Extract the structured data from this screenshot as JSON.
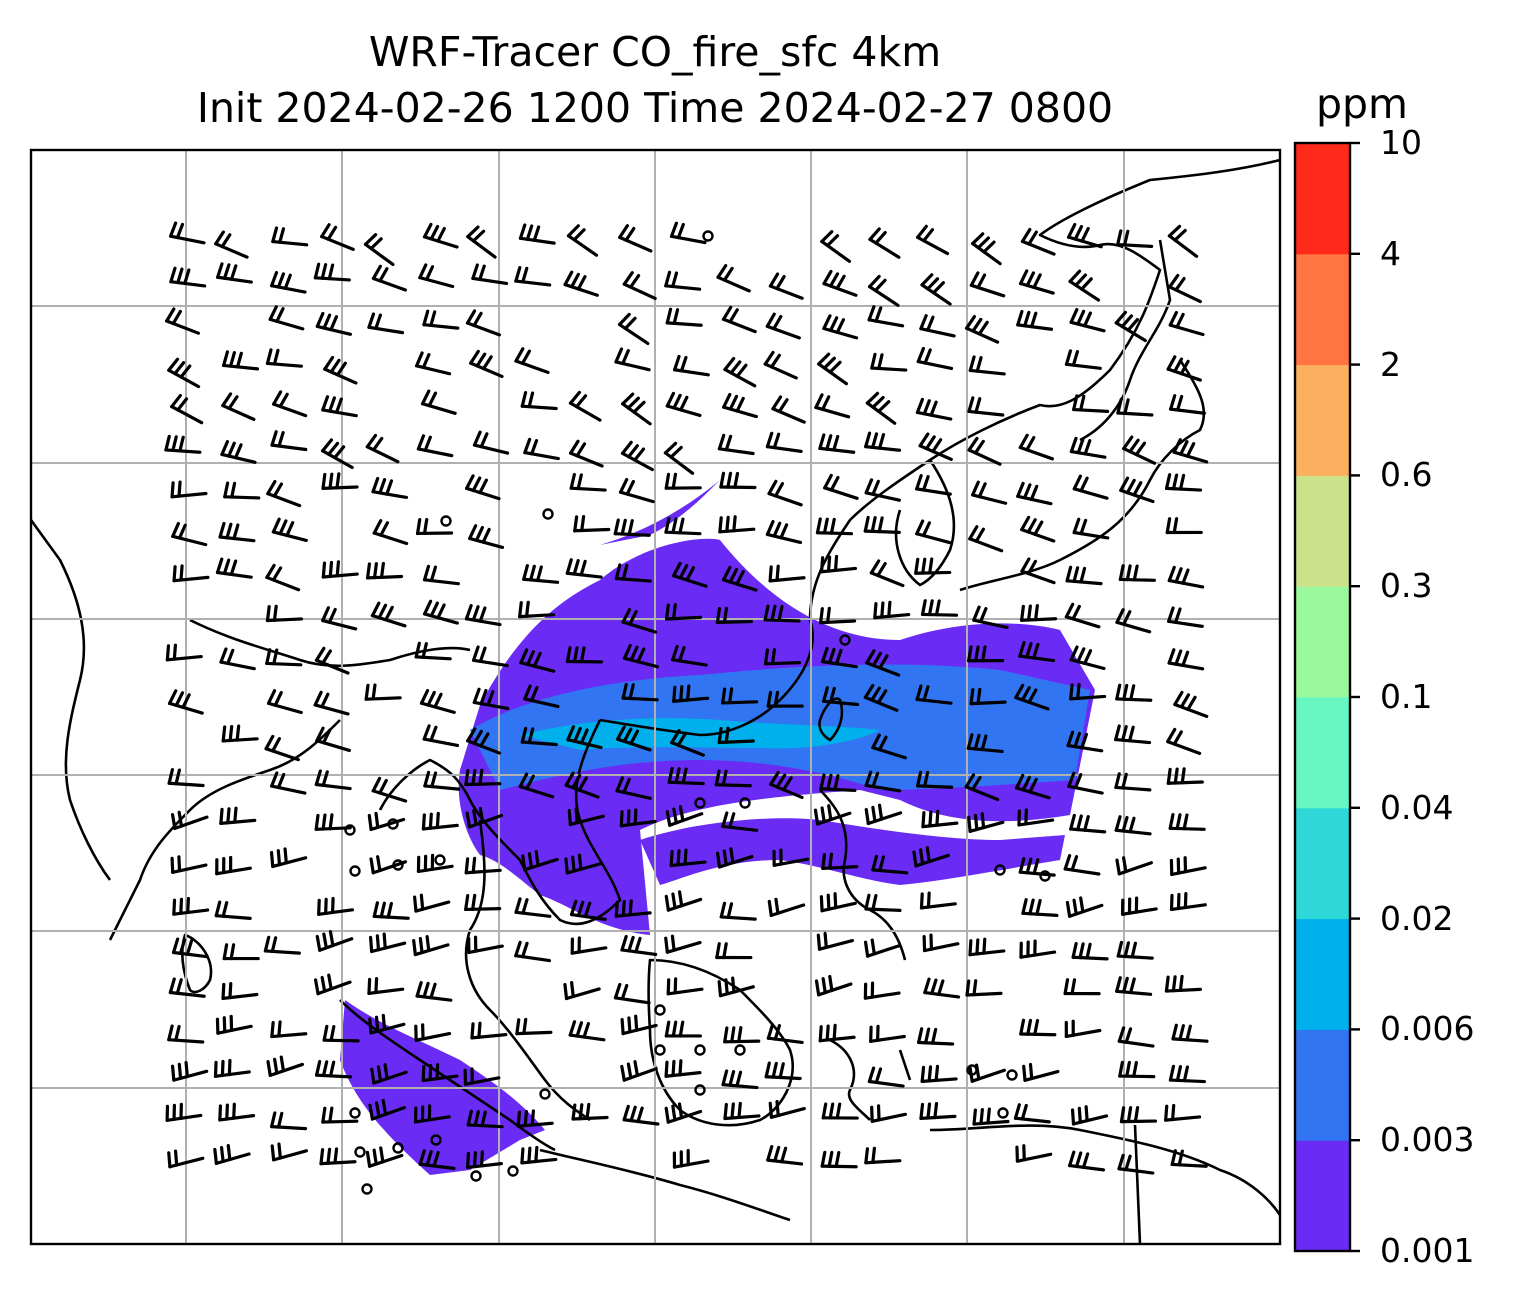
{
  "title": {
    "line1": "WRF-Tracer CO_fire_sfc 4km",
    "line2": "Init 2024-02-26 1200 Time 2024-02-27 0800"
  },
  "colorbar": {
    "unit": "ppm",
    "levels": [
      "0.001",
      "0.003",
      "0.006",
      "0.02",
      "0.04",
      "0.1",
      "0.3",
      "0.6",
      "2",
      "4",
      "10"
    ],
    "colors": [
      "#6a2cf5",
      "#3275f2",
      "#00b0ec",
      "#2ed8d8",
      "#66f7c2",
      "#9af99c",
      "#cce28a",
      "#fbaf5f",
      "#ff7442",
      "#ff2a19"
    ]
  },
  "map": {
    "gridlines": "on",
    "gridline_color": "#b0b0b0",
    "coastline_color": "#000000",
    "wind_symbol": "barbs",
    "plume_colors": [
      "#6a2cf5",
      "#3275f2",
      "#00b0ec"
    ]
  }
}
